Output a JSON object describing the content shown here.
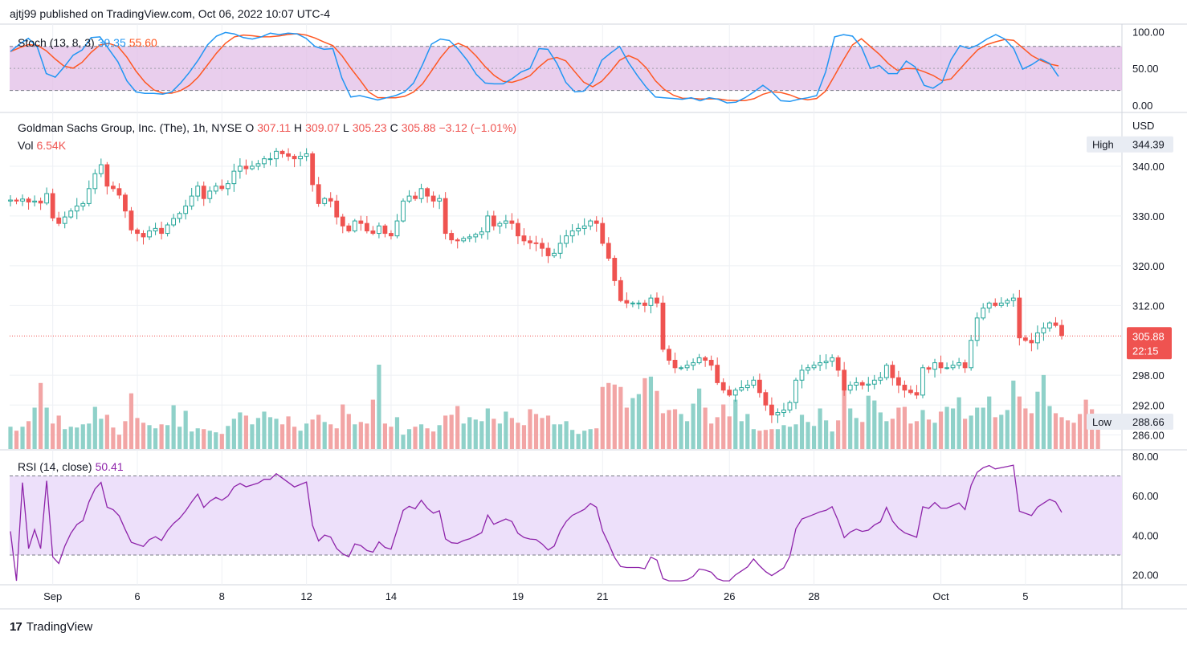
{
  "header": {
    "published_by": "ajtj99 published on TradingView.com, Oct 06, 2022 10:07 UTC-4"
  },
  "footer": {
    "logo_mark": "17",
    "logo_text": "TradingView"
  },
  "colors": {
    "up": "#26a69a",
    "down": "#ef5350",
    "up_vol": "#8fd1c9",
    "down_vol": "#f2a5a5",
    "stoch_k": "#2196f3",
    "stoch_d": "#ff5722",
    "stoch_band": "#e1bee7",
    "rsi_band": "#ede0fa",
    "rsi_line": "#8e24aa",
    "grid": "#eef0f4",
    "axis_text": "#131722"
  },
  "chart_data": [
    {
      "id": "price",
      "type": "candlestick",
      "title": "Goldman Sachs Group, Inc. (The), 1h, NYSE",
      "ohlc_legend": {
        "o_label": "O",
        "o": "307.11",
        "h_label": "H",
        "h": "309.07",
        "l_label": "L",
        "l": "305.23",
        "c_label": "C",
        "c": "305.88",
        "change": "−3.12 (−1.01%)"
      },
      "volume_legend": {
        "label": "Vol",
        "value": "6.54K"
      },
      "currency": "USD",
      "ylim": [
        283,
        350
      ],
      "y_ticks": [
        286,
        292,
        298,
        312,
        320,
        330,
        340
      ],
      "y_tick_labels": [
        "286.00",
        "292.00",
        "298.00",
        "312.00",
        "320.00",
        "330.00",
        "340.00"
      ],
      "high": {
        "label": "High",
        "value": "344.39",
        "price": 344.39
      },
      "low": {
        "label": "Low",
        "value": "288.66",
        "price": 288.66
      },
      "last": {
        "value": "305.88",
        "price": 305.88,
        "countdown": "22:15"
      },
      "x_labels": [
        "Sep",
        "6",
        "8",
        "12",
        "14",
        "19",
        "21",
        "26",
        "28",
        "Oct",
        "5"
      ],
      "x_label_bar_index": [
        7,
        21,
        35,
        49,
        63,
        84,
        98,
        119,
        133,
        154,
        168
      ],
      "closes": [
        333.2,
        333.0,
        333.4,
        332.8,
        333.0,
        332.6,
        334.5,
        329.6,
        328.5,
        329.8,
        331.0,
        332.0,
        332.5,
        335.5,
        338.5,
        340.3,
        336.0,
        335.5,
        334.2,
        331.0,
        327.2,
        326.5,
        325.8,
        327.0,
        327.5,
        326.5,
        328.2,
        329.5,
        330.5,
        332.0,
        334.0,
        336.0,
        333.5,
        335.0,
        336.0,
        335.5,
        336.5,
        339.0,
        340.0,
        339.5,
        340.0,
        340.5,
        341.5,
        341.5,
        343.0,
        342.5,
        342.0,
        341.5,
        342.0,
        342.5,
        336.3,
        332.5,
        333.5,
        333.0,
        329.8,
        328.0,
        327.0,
        329.0,
        328.5,
        327.0,
        326.5,
        328.0,
        326.5,
        326.0,
        329.0,
        333.0,
        334.0,
        333.5,
        335.5,
        334.0,
        333.0,
        333.5,
        326.5,
        325.2,
        325.0,
        325.5,
        325.8,
        326.3,
        326.8,
        330.0,
        328.0,
        328.5,
        329.0,
        328.5,
        326.0,
        325.0,
        324.6,
        324.5,
        323.5,
        322.0,
        322.5,
        324.5,
        326.0,
        327.0,
        327.5,
        328.0,
        329.0,
        328.5,
        324.5,
        321.5,
        317.0,
        313.0,
        312.5,
        312.5,
        312.5,
        312.0,
        313.5,
        312.5,
        303.2,
        301.0,
        299.5,
        299.5,
        300.0,
        300.5,
        301.5,
        301.0,
        300.0,
        296.5,
        295.0,
        294.0,
        295.0,
        295.5,
        296.0,
        297.0,
        294.5,
        292.0,
        290.0,
        290.5,
        291.0,
        292.5,
        297.0,
        299.0,
        299.5,
        300.0,
        300.5,
        300.8,
        301.5,
        299.0,
        295.0,
        296.0,
        296.5,
        296.0,
        296.2,
        297.0,
        297.5,
        300.0,
        297.5,
        296.0,
        295.0,
        294.5,
        294.0,
        299.5,
        299.2,
        300.5,
        299.5,
        299.5,
        300.0,
        300.5,
        299.5,
        305.0,
        309.5,
        311.5,
        312.5,
        312.0,
        312.5,
        313.0,
        313.5,
        305.5,
        305.0,
        304.5,
        306.5,
        307.5,
        308.5,
        308.0,
        306.0
      ],
      "volumes": [
        2.8,
        2.3,
        2.8,
        3.5,
        5.2,
        8.3,
        5.2,
        3.2,
        4.2,
        2.5,
        2.8,
        2.7,
        3.1,
        3.2,
        5.3,
        3.8,
        4.3,
        2.7,
        1.8,
        3.5,
        7.0,
        3.9,
        3.3,
        3.0,
        2.6,
        3.1,
        3.0,
        5.5,
        2.8,
        4.8,
        2.2,
        2.6,
        2.5,
        2.3,
        2.1,
        1.9,
        2.9,
        3.8,
        4.6,
        4.2,
        3.1,
        3.9,
        4.7,
        4.0,
        3.8,
        3.1,
        4.1,
        2.8,
        2.3,
        3.2,
        3.7,
        4.3,
        3.4,
        3.1,
        2.6,
        5.6,
        4.4,
        3.1,
        3.4,
        3.2,
        6.2,
        10.6,
        3.2,
        2.8,
        4.0,
        1.8,
        2.5,
        2.8,
        3.1,
        2.6,
        2.2,
        3.0,
        4.2,
        4.3,
        5.4,
        3.2,
        4.0,
        3.7,
        3.5,
        5.1,
        3.8,
        3.2,
        4.7,
        3.9,
        3.3,
        3.0,
        5.0,
        4.4,
        3.9,
        4.2,
        3.1,
        3.1,
        3.5,
        2.4,
        1.9,
        2.3,
        2.5,
        2.6,
        7.8,
        8.3,
        8.1,
        7.8,
        5.2,
        6.4,
        6.9,
        8.9,
        9.1,
        7.3,
        4.5,
        4.9,
        5.0,
        4.4,
        3.5,
        5.7,
        7.6,
        5.2,
        3.2,
        4.0,
        5.6,
        4.1,
        6.2,
        3.5,
        4.4,
        2.5,
        2.3,
        2.4,
        2.5,
        2.5,
        3.0,
        2.8,
        3.1,
        4.3,
        3.4,
        2.9,
        5.1,
        3.6,
        2.2,
        3.6,
        8.8,
        5.1,
        3.9,
        3.4,
        6.7,
        6.1,
        4.6,
        3.5,
        3.8,
        5.2,
        5.3,
        3.2,
        3.5,
        4.9,
        3.7,
        3.3,
        4.7,
        5.3,
        5.1,
        6.5,
        3.8,
        4.2,
        5.2,
        5.2,
        6.6,
        4.0,
        4.3,
        4.9,
        8.6,
        6.6,
        5.1,
        4.5,
        7.2,
        9.3,
        5.4,
        4.5,
        4.0,
        3.6,
        3.3,
        4.4,
        6.2,
        5.0,
        2.6
      ]
    },
    {
      "id": "stochastic",
      "type": "line",
      "title": "Stoch (13, 8, 3)",
      "k_value": "39.35",
      "d_value": "55.60",
      "ylim": [
        -10,
        106
      ],
      "y_ticks": [
        0,
        50,
        100
      ],
      "y_tick_labels": [
        "0.00",
        "50.00",
        "100.00"
      ],
      "band": [
        20,
        80
      ],
      "k": [
        73.0,
        83.0,
        91.0,
        79.0,
        43.0,
        38.0,
        52.0,
        68.0,
        75.0,
        92.0,
        93.0,
        76.0,
        59.0,
        33.0,
        18.0,
        16.0,
        16.0,
        15.0,
        18.0,
        30.0,
        45.0,
        62.0,
        82.0,
        94.0,
        99.0,
        97.0,
        92.0,
        90.0,
        93.0,
        98.0,
        96.0,
        98.0,
        97.0,
        91.0,
        80.0,
        76.0,
        77.0,
        37.0,
        11.0,
        13.0,
        10.0,
        7.0,
        10.0,
        13.0,
        18.0,
        30.0,
        55.0,
        83.0,
        90.0,
        88.0,
        76.0,
        61.0,
        42.0,
        30.0,
        29.0,
        29.0,
        36.0,
        45.0,
        50.0,
        77.0,
        76.0,
        57.0,
        31.0,
        18.0,
        19.0,
        32.0,
        61.0,
        71.0,
        80.0,
        58.0,
        40.0,
        24.0,
        11.0,
        10.0,
        9.0,
        8.0,
        10.0,
        6.0,
        10.0,
        8.0,
        3.0,
        4.0,
        10.0,
        18.0,
        27.0,
        18.0,
        6.0,
        5.0,
        8.0,
        10.0,
        13.0,
        45.0,
        93.0,
        96.0,
        94.0,
        79.0,
        50.0,
        54.0,
        43.0,
        43.0,
        60.0,
        52.0,
        27.0,
        23.0,
        31.0,
        62.0,
        81.0,
        77.0,
        82.0,
        90.0,
        96.0,
        90.0,
        77.0,
        49.0,
        55.0,
        63.0,
        57.0,
        39.0
      ]
    },
    {
      "id": "rsi",
      "type": "line",
      "title": "RSI (14, close)",
      "value": "50.41",
      "ylim": [
        15,
        82
      ],
      "y_ticks": [
        20,
        40,
        60,
        80
      ],
      "y_tick_labels": [
        "20.00",
        "40.00",
        "60.00",
        "80.00"
      ],
      "band": [
        30,
        70
      ]
    }
  ]
}
